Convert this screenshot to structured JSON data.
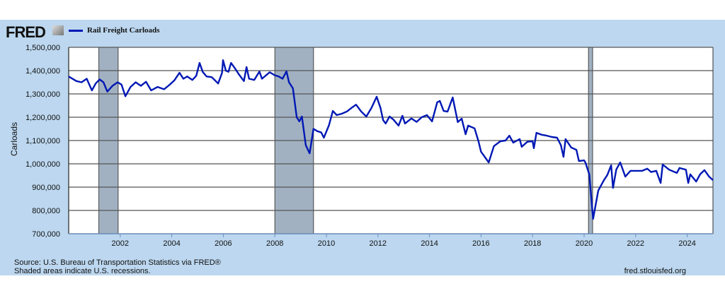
{
  "logo": "FRED",
  "chart_data": {
    "type": "line",
    "title": "Rail Freight Carloads",
    "xlabel": "",
    "ylabel": "Carloads",
    "ylim": [
      700000,
      1500000
    ],
    "xlim": [
      2000,
      2025
    ],
    "yticks": [
      700000,
      800000,
      900000,
      1000000,
      1100000,
      1200000,
      1300000,
      1400000,
      1500000
    ],
    "ytick_labels": [
      "700,000",
      "800,000",
      "900,000",
      "1,000,000",
      "1,100,000",
      "1,200,000",
      "1,300,000",
      "1,400,000",
      "1,500,000"
    ],
    "xticks": [
      2002,
      2004,
      2006,
      2008,
      2010,
      2012,
      2014,
      2016,
      2018,
      2020,
      2022,
      2024
    ],
    "xtick_labels": [
      "2002",
      "2004",
      "2006",
      "2008",
      "2010",
      "2012",
      "2014",
      "2016",
      "2018",
      "2020",
      "2022",
      "2024"
    ],
    "grid": true,
    "legend": "top-left",
    "recessions": [
      [
        2001.17,
        2001.92
      ],
      [
        2008.0,
        2009.5
      ],
      [
        2020.17,
        2020.33
      ]
    ],
    "series": [
      {
        "name": "Rail Freight Carloads",
        "color": "#0018b4",
        "points": [
          [
            2000.0,
            1375000
          ],
          [
            2000.3,
            1355000
          ],
          [
            2000.5,
            1350000
          ],
          [
            2000.7,
            1365000
          ],
          [
            2000.9,
            1315000
          ],
          [
            2001.05,
            1345000
          ],
          [
            2001.2,
            1362000
          ],
          [
            2001.35,
            1350000
          ],
          [
            2001.5,
            1310000
          ],
          [
            2001.7,
            1335000
          ],
          [
            2001.9,
            1350000
          ],
          [
            2002.05,
            1340000
          ],
          [
            2002.2,
            1290000
          ],
          [
            2002.4,
            1330000
          ],
          [
            2002.6,
            1350000
          ],
          [
            2002.8,
            1335000
          ],
          [
            2003.0,
            1352000
          ],
          [
            2003.2,
            1315000
          ],
          [
            2003.45,
            1330000
          ],
          [
            2003.7,
            1320000
          ],
          [
            2003.9,
            1338000
          ],
          [
            2004.1,
            1358000
          ],
          [
            2004.3,
            1391000
          ],
          [
            2004.45,
            1365000
          ],
          [
            2004.6,
            1375000
          ],
          [
            2004.8,
            1360000
          ],
          [
            2004.95,
            1378000
          ],
          [
            2005.08,
            1433000
          ],
          [
            2005.2,
            1395000
          ],
          [
            2005.35,
            1375000
          ],
          [
            2005.55,
            1372000
          ],
          [
            2005.8,
            1345000
          ],
          [
            2005.95,
            1390000
          ],
          [
            2005.99,
            1445000
          ],
          [
            2006.1,
            1400000
          ],
          [
            2006.2,
            1395000
          ],
          [
            2006.3,
            1433000
          ],
          [
            2006.45,
            1410000
          ],
          [
            2006.6,
            1385000
          ],
          [
            2006.8,
            1355000
          ],
          [
            2006.9,
            1415000
          ],
          [
            2007.0,
            1365000
          ],
          [
            2007.2,
            1360000
          ],
          [
            2007.4,
            1396000
          ],
          [
            2007.5,
            1365000
          ],
          [
            2007.8,
            1393000
          ],
          [
            2008.0,
            1380000
          ],
          [
            2008.15,
            1375000
          ],
          [
            2008.3,
            1365000
          ],
          [
            2008.45,
            1397000
          ],
          [
            2008.55,
            1350000
          ],
          [
            2008.7,
            1324000
          ],
          [
            2008.85,
            1200000
          ],
          [
            2008.95,
            1182000
          ],
          [
            2009.05,
            1203000
          ],
          [
            2009.2,
            1080000
          ],
          [
            2009.35,
            1045000
          ],
          [
            2009.5,
            1150000
          ],
          [
            2009.65,
            1140000
          ],
          [
            2009.8,
            1135000
          ],
          [
            2009.9,
            1112000
          ],
          [
            2010.1,
            1165000
          ],
          [
            2010.25,
            1227000
          ],
          [
            2010.4,
            1209000
          ],
          [
            2010.6,
            1215000
          ],
          [
            2010.8,
            1225000
          ],
          [
            2011.0,
            1242000
          ],
          [
            2011.15,
            1254000
          ],
          [
            2011.35,
            1225000
          ],
          [
            2011.55,
            1203000
          ],
          [
            2011.75,
            1240000
          ],
          [
            2011.95,
            1288000
          ],
          [
            2012.1,
            1240000
          ],
          [
            2012.2,
            1188000
          ],
          [
            2012.3,
            1173000
          ],
          [
            2012.45,
            1203000
          ],
          [
            2012.6,
            1190000
          ],
          [
            2012.8,
            1164000
          ],
          [
            2012.95,
            1206000
          ],
          [
            2013.05,
            1173000
          ],
          [
            2013.3,
            1195000
          ],
          [
            2013.5,
            1180000
          ],
          [
            2013.7,
            1200000
          ],
          [
            2013.9,
            1209000
          ],
          [
            2014.1,
            1182000
          ],
          [
            2014.3,
            1264000
          ],
          [
            2014.4,
            1270000
          ],
          [
            2014.55,
            1227000
          ],
          [
            2014.7,
            1224000
          ],
          [
            2014.9,
            1285000
          ],
          [
            2015.1,
            1179000
          ],
          [
            2015.25,
            1194000
          ],
          [
            2015.4,
            1127000
          ],
          [
            2015.5,
            1164000
          ],
          [
            2015.75,
            1152000
          ],
          [
            2015.9,
            1097000
          ],
          [
            2016.0,
            1052000
          ],
          [
            2016.3,
            1006000
          ],
          [
            2016.5,
            1076000
          ],
          [
            2016.75,
            1097000
          ],
          [
            2016.95,
            1100000
          ],
          [
            2017.1,
            1121000
          ],
          [
            2017.25,
            1091000
          ],
          [
            2017.5,
            1106000
          ],
          [
            2017.58,
            1073000
          ],
          [
            2017.8,
            1095000
          ],
          [
            2018.0,
            1097000
          ],
          [
            2018.05,
            1067000
          ],
          [
            2018.15,
            1133000
          ],
          [
            2018.35,
            1125000
          ],
          [
            2018.55,
            1121000
          ],
          [
            2018.75,
            1115000
          ],
          [
            2018.95,
            1112000
          ],
          [
            2019.1,
            1080000
          ],
          [
            2019.2,
            1030000
          ],
          [
            2019.28,
            1106000
          ],
          [
            2019.5,
            1070000
          ],
          [
            2019.7,
            1060000
          ],
          [
            2019.8,
            1012000
          ],
          [
            2020.0,
            1015000
          ],
          [
            2020.05,
            1006000
          ],
          [
            2020.2,
            955000
          ],
          [
            2020.35,
            764000
          ],
          [
            2020.55,
            885000
          ],
          [
            2020.77,
            930000
          ],
          [
            2020.9,
            952000
          ],
          [
            2021.05,
            994000
          ],
          [
            2021.12,
            897000
          ],
          [
            2021.25,
            976000
          ],
          [
            2021.4,
            1006000
          ],
          [
            2021.6,
            945000
          ],
          [
            2021.8,
            970000
          ],
          [
            2022.25,
            970000
          ],
          [
            2022.45,
            979000
          ],
          [
            2022.6,
            965000
          ],
          [
            2022.8,
            970000
          ],
          [
            2022.97,
            918000
          ],
          [
            2023.05,
            997000
          ],
          [
            2023.3,
            975000
          ],
          [
            2023.6,
            961000
          ],
          [
            2023.7,
            982000
          ],
          [
            2023.95,
            975000
          ],
          [
            2024.04,
            918000
          ],
          [
            2024.12,
            955000
          ],
          [
            2024.35,
            924000
          ],
          [
            2024.5,
            955000
          ],
          [
            2024.67,
            973000
          ],
          [
            2024.85,
            945000
          ],
          [
            2025.0,
            930000
          ]
        ]
      }
    ]
  },
  "footer": {
    "source": "Source: U.S. Bureau of Transportation Statistics via FRED®",
    "note": "Shaded areas indicate U.S. recessions.",
    "url": "fred.stlouisfed.org"
  }
}
